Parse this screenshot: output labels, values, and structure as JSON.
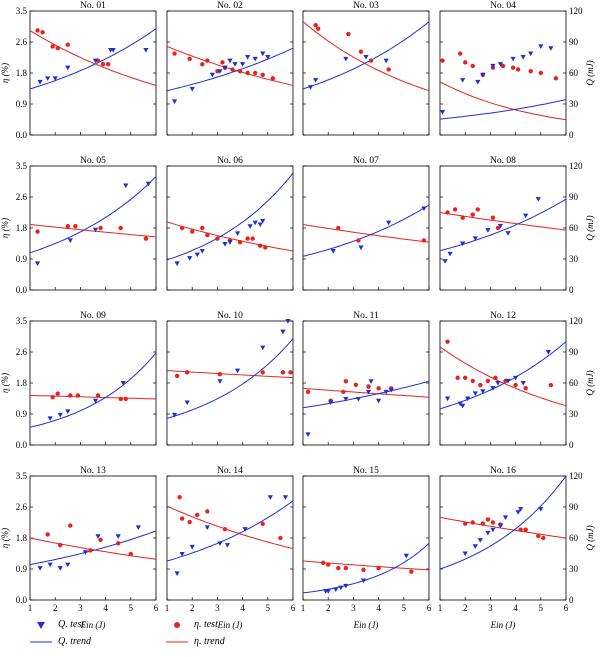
{
  "figure": {
    "colors": {
      "q": "#1f2fd6",
      "eta": "#e8231f"
    },
    "left_axis": {
      "label": "η (%)",
      "ticks": [
        "0.0",
        "0.9",
        "1.8",
        "2.6",
        "3.5"
      ],
      "range": [
        0,
        3.5
      ]
    },
    "right_axis": {
      "label": "Q (mJ)",
      "ticks": [
        "0",
        "30",
        "60",
        "90",
        "120"
      ],
      "range": [
        0,
        120
      ]
    },
    "x_axis": {
      "label": "Ein (J)",
      "ticks": [
        "1",
        "2",
        "3",
        "4",
        "5",
        "6"
      ],
      "range": [
        1,
        6
      ]
    },
    "legend": [
      {
        "key": "q_test",
        "label": "Q. test"
      },
      {
        "key": "q_trend",
        "label": "Q. trend"
      },
      {
        "key": "eta_test",
        "label": "η. test"
      },
      {
        "key": "eta_trend",
        "label": "η. trend"
      }
    ]
  },
  "chart_data": [
    {
      "title": "No. 01",
      "type": "scatter",
      "q_points": [
        [
          1.4,
          1.5
        ],
        [
          1.7,
          1.6
        ],
        [
          2.0,
          1.6
        ],
        [
          2.5,
          1.9
        ],
        [
          3.6,
          2.1
        ],
        [
          4.2,
          2.4
        ],
        [
          4.3,
          2.4
        ],
        [
          5.6,
          2.4
        ]
      ],
      "eta_points": [
        [
          1.3,
          2.95
        ],
        [
          1.5,
          2.9
        ],
        [
          1.9,
          2.5
        ],
        [
          2.1,
          2.45
        ],
        [
          2.5,
          2.55
        ],
        [
          3.7,
          2.1
        ],
        [
          3.9,
          2.0
        ],
        [
          4.1,
          2.0
        ]
      ],
      "q_trend": [
        1.3,
        3.0
      ],
      "eta_trend": [
        2.95,
        1.4
      ]
    },
    {
      "title": "No. 02",
      "type": "scatter",
      "q_points": [
        [
          1.3,
          0.95
        ],
        [
          2.0,
          1.3
        ],
        [
          2.8,
          1.7
        ],
        [
          3.1,
          1.8
        ],
        [
          3.3,
          1.9
        ],
        [
          3.7,
          2.0
        ],
        [
          4.0,
          2.0
        ],
        [
          4.2,
          2.2
        ],
        [
          4.5,
          2.15
        ],
        [
          4.8,
          2.3
        ],
        [
          5.0,
          2.2
        ],
        [
          3.5,
          2.1
        ]
      ],
      "eta_points": [
        [
          1.3,
          2.3
        ],
        [
          1.9,
          2.15
        ],
        [
          2.4,
          2.0
        ],
        [
          2.6,
          2.1
        ],
        [
          3.0,
          1.8
        ],
        [
          3.3,
          1.9
        ],
        [
          3.6,
          1.85
        ],
        [
          3.9,
          1.8
        ],
        [
          4.2,
          1.75
        ],
        [
          4.5,
          1.75
        ],
        [
          4.8,
          1.7
        ],
        [
          5.2,
          1.6
        ],
        [
          3.2,
          2.05
        ]
      ],
      "q_trend": [
        1.25,
        2.45
      ],
      "eta_trend": [
        2.5,
        1.4
      ]
    },
    {
      "title": "No. 03",
      "type": "scatter",
      "q_points": [
        [
          1.3,
          1.35
        ],
        [
          1.5,
          1.55
        ],
        [
          2.7,
          2.15
        ],
        [
          3.5,
          2.2
        ],
        [
          4.3,
          2.1
        ]
      ],
      "eta_points": [
        [
          1.5,
          3.1
        ],
        [
          1.6,
          3.0
        ],
        [
          2.8,
          2.85
        ],
        [
          3.3,
          2.35
        ],
        [
          3.7,
          2.1
        ],
        [
          4.4,
          1.85
        ]
      ],
      "q_trend": [
        1.3,
        3.2
      ],
      "eta_trend": [
        3.2,
        1.25
      ]
    },
    {
      "title": "No. 04",
      "type": "scatter",
      "q_points": [
        [
          1.1,
          0.65
        ],
        [
          1.9,
          1.55
        ],
        [
          2.5,
          1.5
        ],
        [
          2.7,
          1.7
        ],
        [
          3.1,
          1.95
        ],
        [
          3.4,
          2.0
        ],
        [
          3.9,
          2.15
        ],
        [
          4.3,
          2.2
        ],
        [
          4.6,
          2.3
        ],
        [
          5.0,
          2.5
        ],
        [
          5.4,
          2.45
        ]
      ],
      "eta_points": [
        [
          1.1,
          2.1
        ],
        [
          1.8,
          2.3
        ],
        [
          2.0,
          2.05
        ],
        [
          2.3,
          1.95
        ],
        [
          2.7,
          1.7
        ],
        [
          3.1,
          1.9
        ],
        [
          3.5,
          1.95
        ],
        [
          3.9,
          1.9
        ],
        [
          4.1,
          1.85
        ],
        [
          4.6,
          1.8
        ],
        [
          5.0,
          1.75
        ],
        [
          5.6,
          1.6
        ]
      ],
      "q_trend": [
        0.45,
        1.0
      ],
      "eta_trend": [
        1.5,
        0.43
      ]
    },
    {
      "title": "No. 05",
      "type": "scatter",
      "q_points": [
        [
          1.3,
          0.75
        ],
        [
          2.6,
          1.4
        ],
        [
          3.6,
          1.7
        ],
        [
          4.8,
          2.95
        ],
        [
          5.7,
          3.0
        ]
      ],
      "eta_points": [
        [
          1.3,
          1.65
        ],
        [
          2.5,
          1.8
        ],
        [
          2.8,
          1.8
        ],
        [
          3.8,
          1.75
        ],
        [
          4.6,
          1.75
        ],
        [
          5.6,
          1.45
        ]
      ],
      "q_trend": [
        1.05,
        3.2
      ],
      "eta_trend": [
        1.85,
        1.5
      ]
    },
    {
      "title": "No. 06",
      "type": "scatter",
      "q_points": [
        [
          1.4,
          0.75
        ],
        [
          1.9,
          0.9
        ],
        [
          2.2,
          1.0
        ],
        [
          2.4,
          1.1
        ],
        [
          3.3,
          1.3
        ],
        [
          3.5,
          1.35
        ],
        [
          3.8,
          1.6
        ],
        [
          4.3,
          1.8
        ],
        [
          4.5,
          1.9
        ],
        [
          4.7,
          1.85
        ],
        [
          4.8,
          1.95
        ]
      ],
      "eta_points": [
        [
          1.6,
          1.75
        ],
        [
          2.0,
          1.65
        ],
        [
          2.4,
          1.75
        ],
        [
          2.6,
          1.55
        ],
        [
          3.0,
          1.45
        ],
        [
          3.5,
          1.4
        ],
        [
          3.9,
          1.35
        ],
        [
          4.2,
          1.45
        ],
        [
          4.4,
          1.45
        ],
        [
          4.7,
          1.25
        ],
        [
          4.9,
          1.2
        ]
      ],
      "q_trend": [
        0.85,
        3.3
      ],
      "eta_trend": [
        1.92,
        1.1
      ]
    },
    {
      "title": "No. 07",
      "type": "scatter",
      "q_points": [
        [
          2.2,
          1.1
        ],
        [
          3.3,
          1.2
        ],
        [
          4.4,
          1.9
        ],
        [
          5.8,
          2.3
        ]
      ],
      "eta_points": [
        [
          2.4,
          1.75
        ],
        [
          3.2,
          1.4
        ],
        [
          5.8,
          1.4
        ]
      ],
      "q_trend": [
        0.95,
        2.4
      ],
      "eta_trend": [
        1.85,
        1.35
      ]
    },
    {
      "title": "No. 08",
      "type": "scatter",
      "q_points": [
        [
          1.2,
          28
        ],
        [
          1.4,
          35
        ],
        [
          1.9,
          45
        ],
        [
          2.4,
          50
        ],
        [
          2.9,
          58
        ],
        [
          3.4,
          62
        ],
        [
          3.7,
          55
        ],
        [
          4.4,
          72
        ],
        [
          4.9,
          88
        ]
      ],
      "eta_points": [
        [
          1.3,
          75
        ],
        [
          1.6,
          78
        ],
        [
          1.9,
          70
        ],
        [
          2.3,
          73
        ],
        [
          2.5,
          78
        ],
        [
          3.1,
          70
        ],
        [
          3.3,
          60
        ]
      ],
      "q_trend": [
        38,
        88
      ],
      "eta_trend": [
        75,
        58
      ],
      "axis": "right"
    },
    {
      "title": "No. 09",
      "type": "scatter",
      "q_points": [
        [
          1.8,
          0.75
        ],
        [
          2.2,
          0.85
        ],
        [
          2.5,
          0.95
        ],
        [
          3.6,
          1.25
        ],
        [
          4.7,
          1.75
        ]
      ],
      "eta_points": [
        [
          1.9,
          1.35
        ],
        [
          2.1,
          1.45
        ],
        [
          2.6,
          1.4
        ],
        [
          2.9,
          1.4
        ],
        [
          3.7,
          1.4
        ],
        [
          4.6,
          1.3
        ],
        [
          4.8,
          1.3
        ]
      ],
      "q_trend": [
        0.5,
        2.6
      ],
      "eta_trend": [
        1.4,
        1.3
      ]
    },
    {
      "title": "No. 10",
      "type": "scatter",
      "q_points": [
        [
          1.3,
          0.85
        ],
        [
          1.8,
          1.2
        ],
        [
          3.1,
          1.8
        ],
        [
          3.8,
          2.1
        ],
        [
          4.8,
          2.75
        ],
        [
          5.6,
          3.2
        ],
        [
          5.8,
          3.5
        ]
      ],
      "eta_points": [
        [
          1.4,
          1.95
        ],
        [
          1.8,
          2.05
        ],
        [
          3.1,
          2.0
        ],
        [
          4.8,
          2.05
        ],
        [
          5.6,
          2.05
        ],
        [
          5.9,
          2.05
        ]
      ],
      "q_trend": [
        0.75,
        3.0
      ],
      "eta_trend": [
        2.1,
        1.9
      ]
    },
    {
      "title": "No. 11",
      "type": "scatter",
      "q_points": [
        [
          1.2,
          0.3
        ],
        [
          2.1,
          1.2
        ],
        [
          2.7,
          1.3
        ],
        [
          3.2,
          1.3
        ],
        [
          3.6,
          1.5
        ],
        [
          3.7,
          1.8
        ],
        [
          4.0,
          1.25
        ],
        [
          4.3,
          1.5
        ],
        [
          4.5,
          1.55
        ]
      ],
      "eta_points": [
        [
          1.2,
          1.5
        ],
        [
          2.1,
          1.25
        ],
        [
          2.6,
          1.5
        ],
        [
          2.7,
          1.8
        ],
        [
          3.1,
          1.7
        ],
        [
          3.6,
          1.65
        ],
        [
          4.0,
          1.6
        ],
        [
          4.5,
          1.6
        ]
      ],
      "q_trend": [
        1.05,
        1.8
      ],
      "eta_trend": [
        1.6,
        1.35
      ]
    },
    {
      "title": "No. 12",
      "type": "scatter",
      "q_points": [
        [
          1.3,
          45
        ],
        [
          1.8,
          40
        ],
        [
          1.9,
          38
        ],
        [
          2.1,
          45
        ],
        [
          2.4,
          50
        ],
        [
          2.7,
          52
        ],
        [
          3.1,
          55
        ],
        [
          3.3,
          60
        ],
        [
          3.7,
          62
        ],
        [
          4.0,
          65
        ],
        [
          4.3,
          60
        ],
        [
          5.3,
          90
        ]
      ],
      "eta_points": [
        [
          1.3,
          100
        ],
        [
          1.7,
          65
        ],
        [
          2.0,
          65
        ],
        [
          2.3,
          62
        ],
        [
          2.6,
          58
        ],
        [
          2.9,
          62
        ],
        [
          3.2,
          65
        ],
        [
          3.6,
          62
        ],
        [
          4.0,
          58
        ],
        [
          4.4,
          55
        ],
        [
          5.4,
          58
        ]
      ],
      "q_trend": [
        35,
        100
      ],
      "eta_trend": [
        95,
        38
      ],
      "axis": "right"
    },
    {
      "title": "No. 13",
      "type": "scatter",
      "q_points": [
        [
          1.4,
          0.9
        ],
        [
          1.8,
          1.0
        ],
        [
          2.2,
          0.9
        ],
        [
          2.5,
          1.0
        ],
        [
          3.2,
          1.35
        ],
        [
          3.7,
          1.8
        ],
        [
          4.5,
          1.8
        ],
        [
          5.3,
          2.05
        ]
      ],
      "eta_points": [
        [
          1.7,
          1.85
        ],
        [
          2.2,
          1.55
        ],
        [
          2.6,
          2.1
        ],
        [
          3.4,
          1.4
        ],
        [
          3.8,
          1.7
        ],
        [
          4.5,
          1.6
        ],
        [
          5.0,
          1.3
        ]
      ],
      "q_trend": [
        1.0,
        1.95
      ],
      "eta_trend": [
        1.75,
        1.15
      ]
    },
    {
      "title": "No. 14",
      "type": "scatter",
      "q_points": [
        [
          1.4,
          0.75
        ],
        [
          1.6,
          1.3
        ],
        [
          2.0,
          1.5
        ],
        [
          2.6,
          2.05
        ],
        [
          3.1,
          1.6
        ],
        [
          3.4,
          1.55
        ],
        [
          4.1,
          2.0
        ],
        [
          5.1,
          2.9
        ],
        [
          5.7,
          2.9
        ]
      ],
      "eta_points": [
        [
          1.5,
          2.9
        ],
        [
          1.6,
          2.3
        ],
        [
          1.9,
          2.2
        ],
        [
          2.2,
          2.4
        ],
        [
          2.6,
          2.5
        ],
        [
          3.3,
          2.0
        ],
        [
          4.8,
          2.15
        ],
        [
          5.5,
          1.75
        ]
      ],
      "q_trend": [
        1.1,
        2.8
      ],
      "eta_trend": [
        2.65,
        1.45
      ]
    },
    {
      "title": "No. 15",
      "type": "scatter",
      "q_points": [
        [
          1.9,
          0.25
        ],
        [
          2.0,
          0.25
        ],
        [
          2.3,
          0.3
        ],
        [
          2.5,
          0.35
        ],
        [
          2.7,
          0.4
        ],
        [
          3.4,
          0.55
        ],
        [
          5.1,
          1.25
        ]
      ],
      "eta_points": [
        [
          1.8,
          1.05
        ],
        [
          2.0,
          1.0
        ],
        [
          2.4,
          0.9
        ],
        [
          2.7,
          0.9
        ],
        [
          3.4,
          0.85
        ],
        [
          4.0,
          0.9
        ],
        [
          5.3,
          0.8
        ]
      ],
      "q_trend": [
        0.2,
        1.6
      ],
      "eta_trend": [
        1.1,
        0.85
      ]
    },
    {
      "title": "No. 16",
      "type": "scatter",
      "q_points": [
        [
          2.0,
          45
        ],
        [
          2.4,
          52
        ],
        [
          2.6,
          58
        ],
        [
          2.9,
          65
        ],
        [
          3.1,
          68
        ],
        [
          3.4,
          72
        ],
        [
          3.6,
          80
        ],
        [
          4.1,
          85
        ],
        [
          4.2,
          88
        ],
        [
          5.0,
          88
        ]
      ],
      "eta_points": [
        [
          2.0,
          74
        ],
        [
          2.3,
          75
        ],
        [
          2.7,
          74
        ],
        [
          2.9,
          78
        ],
        [
          3.1,
          75
        ],
        [
          3.4,
          73
        ],
        [
          4.2,
          68
        ],
        [
          4.4,
          68
        ],
        [
          4.9,
          62
        ],
        [
          5.1,
          60
        ]
      ],
      "q_trend": [
        30,
        120
      ],
      "eta_trend": [
        80,
        60
      ],
      "axis": "right"
    }
  ]
}
